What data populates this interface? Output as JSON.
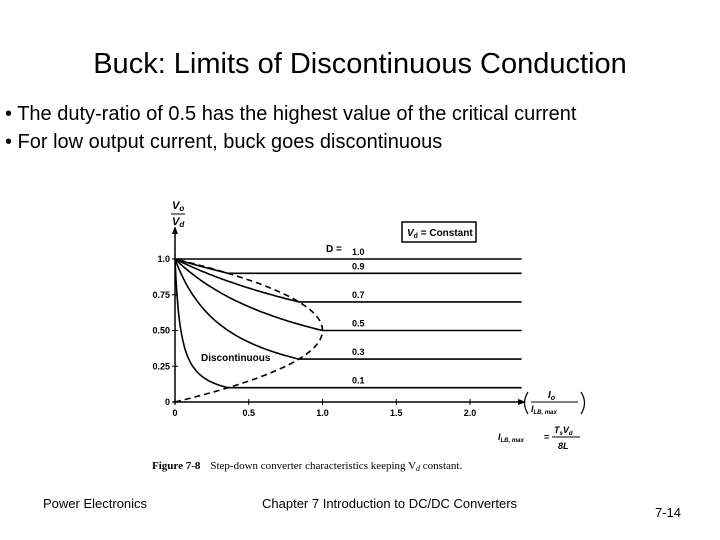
{
  "slide": {
    "title": "Buck: Limits of Discontinuous Conduction",
    "bullets": [
      "• The duty-ratio of 0.5 has the highest value of the critical current",
      "• For low output current, buck goes discontinuous"
    ],
    "footer": {
      "left": "Power Electronics",
      "center": "Chapter 7 Introduction to DC/DC Converters",
      "right": "7-14"
    }
  },
  "figure": {
    "caption_label": "Figure 7-8",
    "caption_text": "Step-down converter characteristics keeping V",
    "caption_sub": "d",
    "caption_end": " constant.",
    "y_axis_top": "V",
    "y_axis_top_sub": "o",
    "y_axis_bottom": "V",
    "y_axis_bottom_sub": "d",
    "x_axis_top": "I",
    "x_axis_top_sub": "o",
    "x_axis_bottom": "I",
    "x_axis_bottom_sub": "LB, max",
    "legend_box": "V",
    "legend_box_sub": "d",
    "legend_box_end": " = Constant",
    "region_label": "Discontinuous",
    "formula_lhs": "I",
    "formula_lhs_sub": "LB, max",
    "formula_eq": "=",
    "formula_num": "T",
    "formula_num_sub": "s",
    "formula_num_v": "V",
    "formula_num_v_sub": "d",
    "formula_den": "8L",
    "duty_prefix": "D =",
    "duty_labels": [
      "1.0",
      "0.9",
      "0.7",
      "0.5",
      "0.3",
      "0.1"
    ]
  },
  "chart_data": {
    "type": "line",
    "xlim": [
      0,
      2.0
    ],
    "ylim": [
      0,
      1.0
    ],
    "x_ticks": [
      "0",
      "0.5",
      "1.0",
      "1.5",
      "2.0"
    ],
    "y_ticks": [
      "0",
      "0.25",
      "0.50",
      "0.75",
      "1.0"
    ],
    "series": [
      {
        "name": "1.0",
        "duty": 1.0
      },
      {
        "name": "0.9",
        "duty": 0.9
      },
      {
        "name": "0.7",
        "duty": 0.7
      },
      {
        "name": "0.5",
        "duty": 0.5
      },
      {
        "name": "0.3",
        "duty": 0.3
      },
      {
        "name": "0.1",
        "duty": 0.1
      }
    ],
    "boundary_style": "dashed",
    "line_end_x": 2.35
  }
}
